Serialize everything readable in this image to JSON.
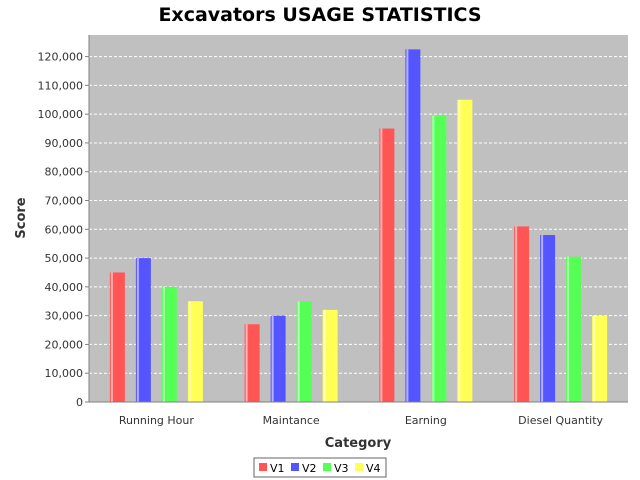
{
  "chart_data": {
    "type": "bar",
    "title": "Excavators USAGE STATISTICS",
    "xlabel": "Category",
    "ylabel": "Score",
    "categories": [
      "Running Hour",
      "Maintance",
      "Earning",
      "Diesel Quantity"
    ],
    "series": [
      {
        "name": "V1",
        "color": "#ff5555",
        "values": [
          45000,
          27000,
          95000,
          61000
        ]
      },
      {
        "name": "V2",
        "color": "#5555ff",
        "values": [
          50000,
          30000,
          122500,
          58000
        ]
      },
      {
        "name": "V3",
        "color": "#55ff55",
        "values": [
          40000,
          35000,
          99500,
          50500
        ]
      },
      {
        "name": "V4",
        "color": "#ffff55",
        "values": [
          35000,
          32000,
          105000,
          30000
        ]
      }
    ],
    "ylim": [
      0,
      127500
    ],
    "yticks": [
      "0",
      "10,000",
      "20,000",
      "30,000",
      "40,000",
      "50,000",
      "60,000",
      "70,000",
      "80,000",
      "90,000",
      "100,000",
      "110,000",
      "120,000"
    ],
    "grid": true,
    "legend_position": "bottom",
    "plot_background": "#c0c0c0"
  }
}
